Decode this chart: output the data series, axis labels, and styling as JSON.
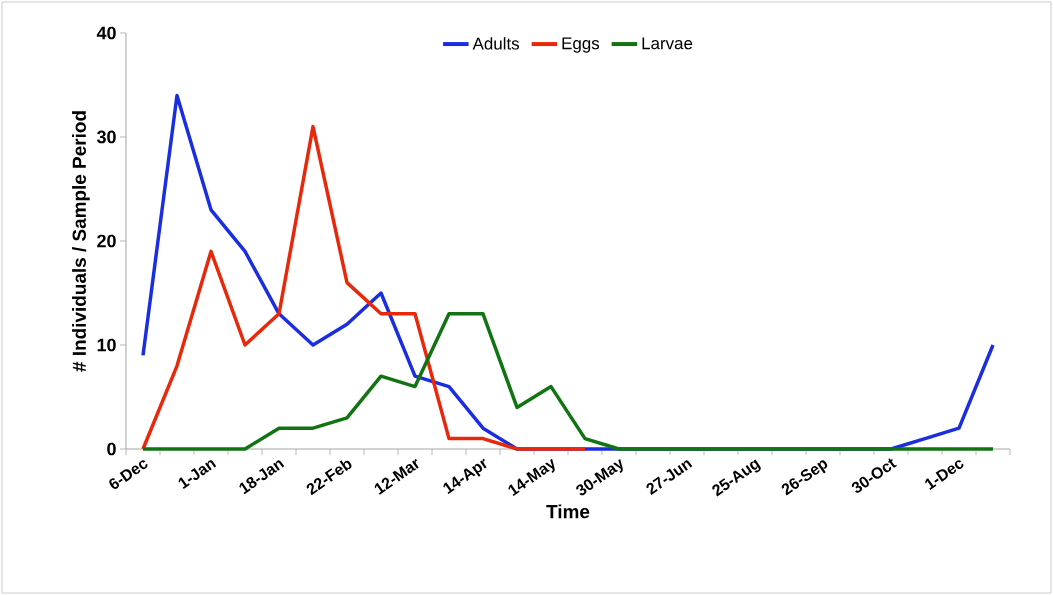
{
  "chart_data": {
    "type": "line",
    "xlabel": "Time",
    "ylabel": "# Individuals / Sample Period",
    "categories": [
      "6-Dec",
      null,
      "1-Jan",
      null,
      "18-Jan",
      null,
      "22-Feb",
      null,
      "12-Mar",
      null,
      "14-Apr",
      null,
      "14-May",
      null,
      "30-May",
      null,
      "27-Jun",
      null,
      "25-Aug",
      null,
      "26-Sep",
      null,
      "30-Oct",
      null,
      "1-Dec",
      null
    ],
    "series": [
      {
        "name": "Adults",
        "color": "#1a2ee0",
        "values": [
          9,
          34,
          23,
          19,
          13,
          10,
          12,
          15,
          7,
          6,
          2,
          0,
          0,
          0,
          0,
          0,
          0,
          0,
          0,
          0,
          0,
          0,
          0,
          1,
          2,
          10
        ]
      },
      {
        "name": "Eggs",
        "color": "#e8280a",
        "values": [
          0,
          8,
          19,
          10,
          13,
          31,
          16,
          13,
          13,
          1,
          1,
          0,
          0,
          0,
          null,
          null,
          null,
          null,
          null,
          null,
          null,
          null,
          null,
          null,
          null,
          null
        ]
      },
      {
        "name": "Larvae",
        "color": "#127312",
        "values": [
          0,
          0,
          0,
          0,
          2,
          2,
          3,
          7,
          6,
          13,
          13,
          4,
          6,
          1,
          0,
          0,
          0,
          0,
          0,
          0,
          0,
          0,
          0,
          0,
          0,
          0
        ]
      }
    ],
    "ylim": [
      0,
      40
    ],
    "yticks": [
      0,
      10,
      20,
      30,
      40
    ],
    "legend": "top",
    "grid": false,
    "marker": "none",
    "line_style": "solid"
  }
}
